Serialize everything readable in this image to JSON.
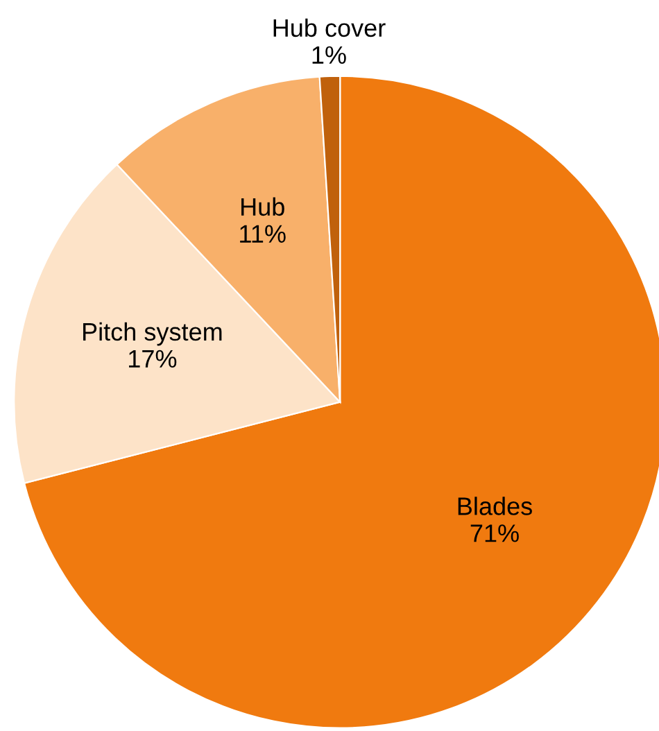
{
  "chart_data": {
    "type": "pie",
    "categories": [
      "Blades",
      "Pitch system",
      "Hub",
      "Hub cover"
    ],
    "values": [
      71,
      17,
      11,
      1
    ],
    "value_labels": [
      "71%",
      "17%",
      "11%",
      "1%"
    ],
    "colors": [
      "#f07a0f",
      "#fde3c8",
      "#f8b06a",
      "#c0610c"
    ],
    "legend": false
  }
}
